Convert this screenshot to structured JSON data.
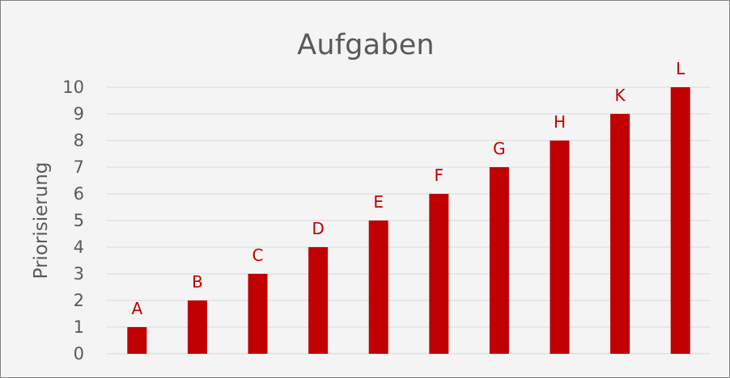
{
  "chart_data": {
    "type": "bar",
    "title": "Aufgaben",
    "xlabel": "",
    "ylabel": "Priorisierung",
    "categories": [
      "A",
      "B",
      "C",
      "D",
      "E",
      "F",
      "G",
      "H",
      "K",
      "L"
    ],
    "values": [
      1,
      2,
      3,
      4,
      5,
      6,
      7,
      8,
      9,
      10
    ],
    "data_labels": [
      "A",
      "B",
      "C",
      "D",
      "E",
      "F",
      "G",
      "H",
      "K",
      "L"
    ],
    "ylim": [
      0,
      10
    ],
    "yticks": [
      0,
      1,
      2,
      3,
      4,
      5,
      6,
      7,
      8,
      9,
      10
    ],
    "grid": true,
    "legend": "none",
    "colors": {
      "bar": "#c00000",
      "background": "#f4f4f4",
      "grid": "#d9d9d9",
      "text": "#595959",
      "frame": "#7f7f7f"
    }
  }
}
